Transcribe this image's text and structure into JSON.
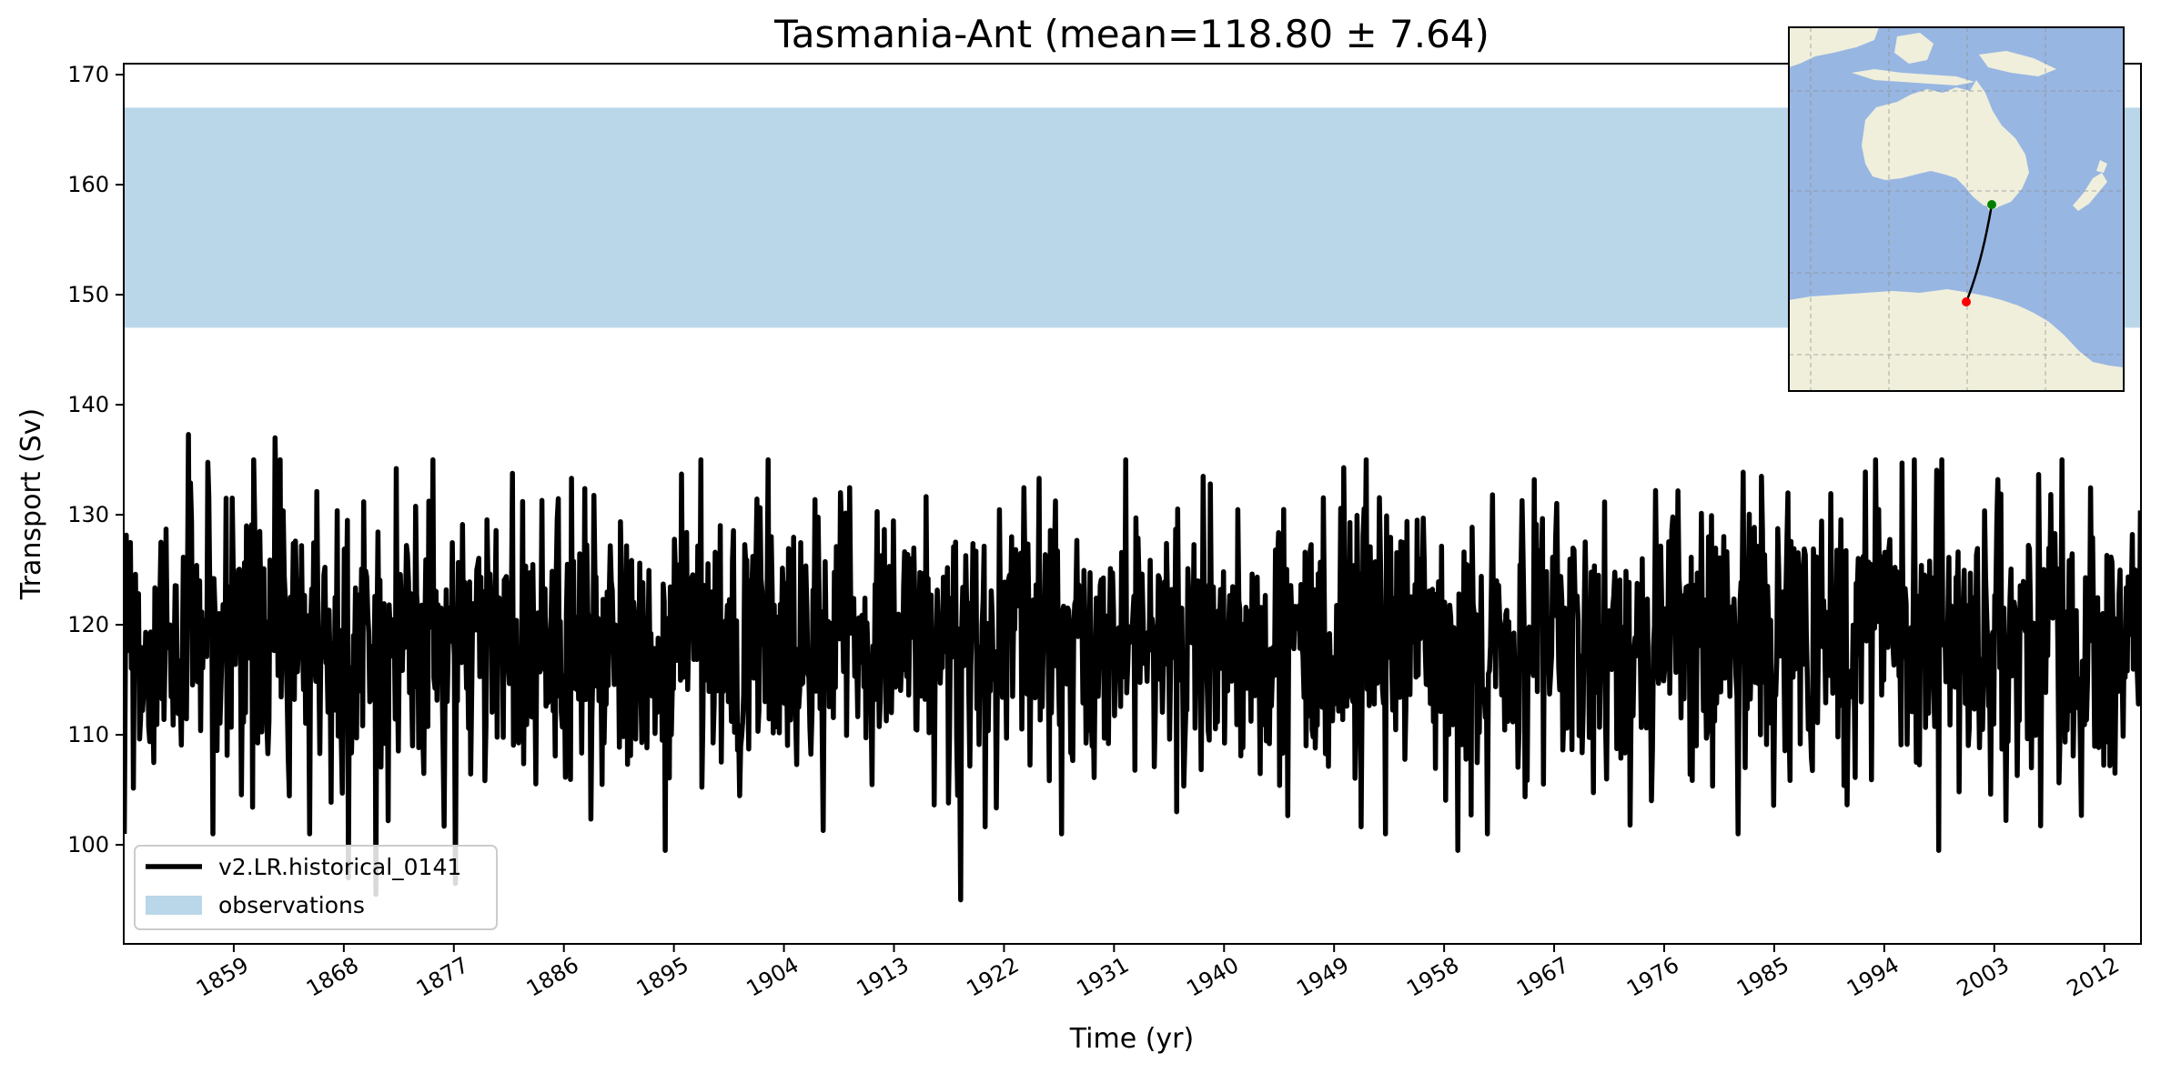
{
  "chart_data": {
    "type": "line",
    "title": "Tasmania-Ant (mean=118.80 ± 7.64)",
    "xlabel": "Time (yr)",
    "ylabel": "Transport (Sv)",
    "xlim": [
      1850,
      2015
    ],
    "ylim": [
      91,
      171
    ],
    "x_ticks": [
      1859,
      1868,
      1877,
      1886,
      1895,
      1904,
      1913,
      1922,
      1931,
      1940,
      1949,
      1958,
      1967,
      1976,
      1985,
      1994,
      2003,
      2012
    ],
    "y_ticks": [
      100,
      110,
      120,
      130,
      140,
      150,
      160,
      170
    ],
    "legend_position": "lower-left",
    "grid": false,
    "observations_band": {
      "name": "observations",
      "low": 147,
      "high": 167,
      "color": "#bad6e9"
    },
    "series": [
      {
        "name": "v2.LR.historical_0141",
        "color": "#000000",
        "sampling": "monthly, 1850-2014",
        "mean": 118.8,
        "std": 7.64,
        "notable_extremes": [
          {
            "x": 1855.3,
            "y": 137.3
          },
          {
            "x": 1862.4,
            "y": 137.0
          },
          {
            "x": 1868.4,
            "y": 97.0
          },
          {
            "x": 1870.6,
            "y": 95.5
          },
          {
            "x": 1877.1,
            "y": 96.5
          },
          {
            "x": 1894.3,
            "y": 99.5
          },
          {
            "x": 1918.5,
            "y": 95.0
          },
          {
            "x": 1938.3,
            "y": 133.5
          },
          {
            "x": 1959.1,
            "y": 99.5
          },
          {
            "x": 1984.0,
            "y": 133.5
          },
          {
            "x": 1998.5,
            "y": 99.5
          },
          {
            "x": 2003.3,
            "y": 133.2
          }
        ]
      }
    ],
    "inset_map": {
      "description_icon": "map-of-australia-to-antarctica",
      "ocean_color": "#98b6e2",
      "land_color": "#efefdc",
      "start_point_color": "#008000",
      "end_point_color": "#ff0000"
    }
  }
}
